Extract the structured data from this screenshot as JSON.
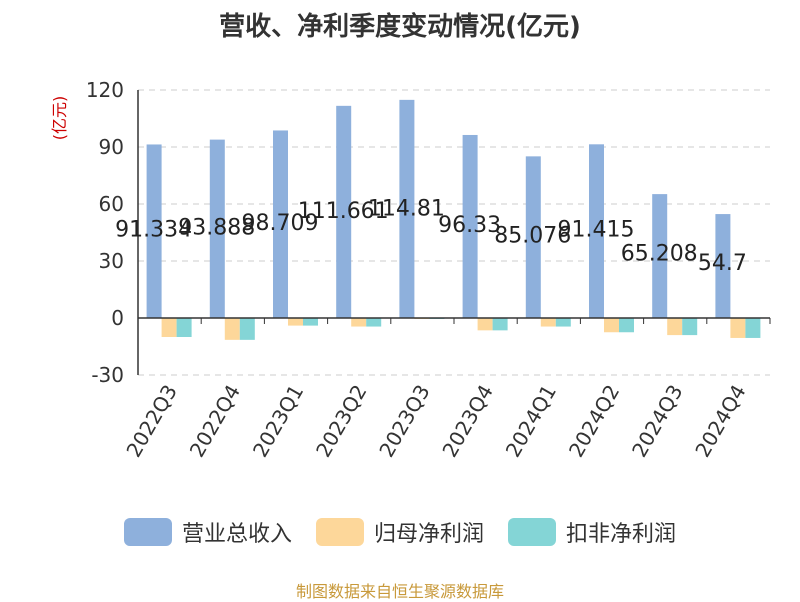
{
  "title": "营收、净利季度变动情况(亿元)",
  "source": "制图数据来自恒生聚源数据库",
  "chart_data": {
    "type": "bar",
    "title": "营收、净利季度变动情况(亿元)",
    "ylabel": "(亿元)",
    "xlabel": "",
    "ylim": [
      -30,
      120
    ],
    "yticks": [
      120,
      90,
      60,
      30,
      0,
      -30
    ],
    "grid": true,
    "legend_position": "bottom",
    "categories": [
      "2022Q3",
      "2022Q4",
      "2023Q1",
      "2023Q2",
      "2023Q3",
      "2023Q4",
      "2024Q1",
      "2024Q2",
      "2024Q3",
      "2024Q4"
    ],
    "series": [
      {
        "name": "营业总收入",
        "color": "#8eb0dc",
        "values": [
          91.334,
          93.888,
          98.709,
          111.661,
          114.81,
          96.33,
          85.076,
          91.415,
          65.208,
          54.7
        ],
        "labels": [
          "91.334",
          "93.888",
          "98.709",
          "111.661",
          "114.81",
          "96.33",
          "85.076",
          "91.415",
          "65.208",
          "54.7"
        ]
      },
      {
        "name": "归母净利润",
        "color": "#fdd79a",
        "values": [
          -10,
          -11.5,
          -4,
          -4.5,
          -0.5,
          -6.5,
          -4.5,
          -7.5,
          -9,
          -10.5
        ]
      },
      {
        "name": "扣非净利润",
        "color": "#84d5d6",
        "values": [
          -10,
          -11.5,
          -4,
          -4.5,
          -0.5,
          -6.5,
          -4.5,
          -7.5,
          -9,
          -10.5
        ]
      }
    ]
  }
}
